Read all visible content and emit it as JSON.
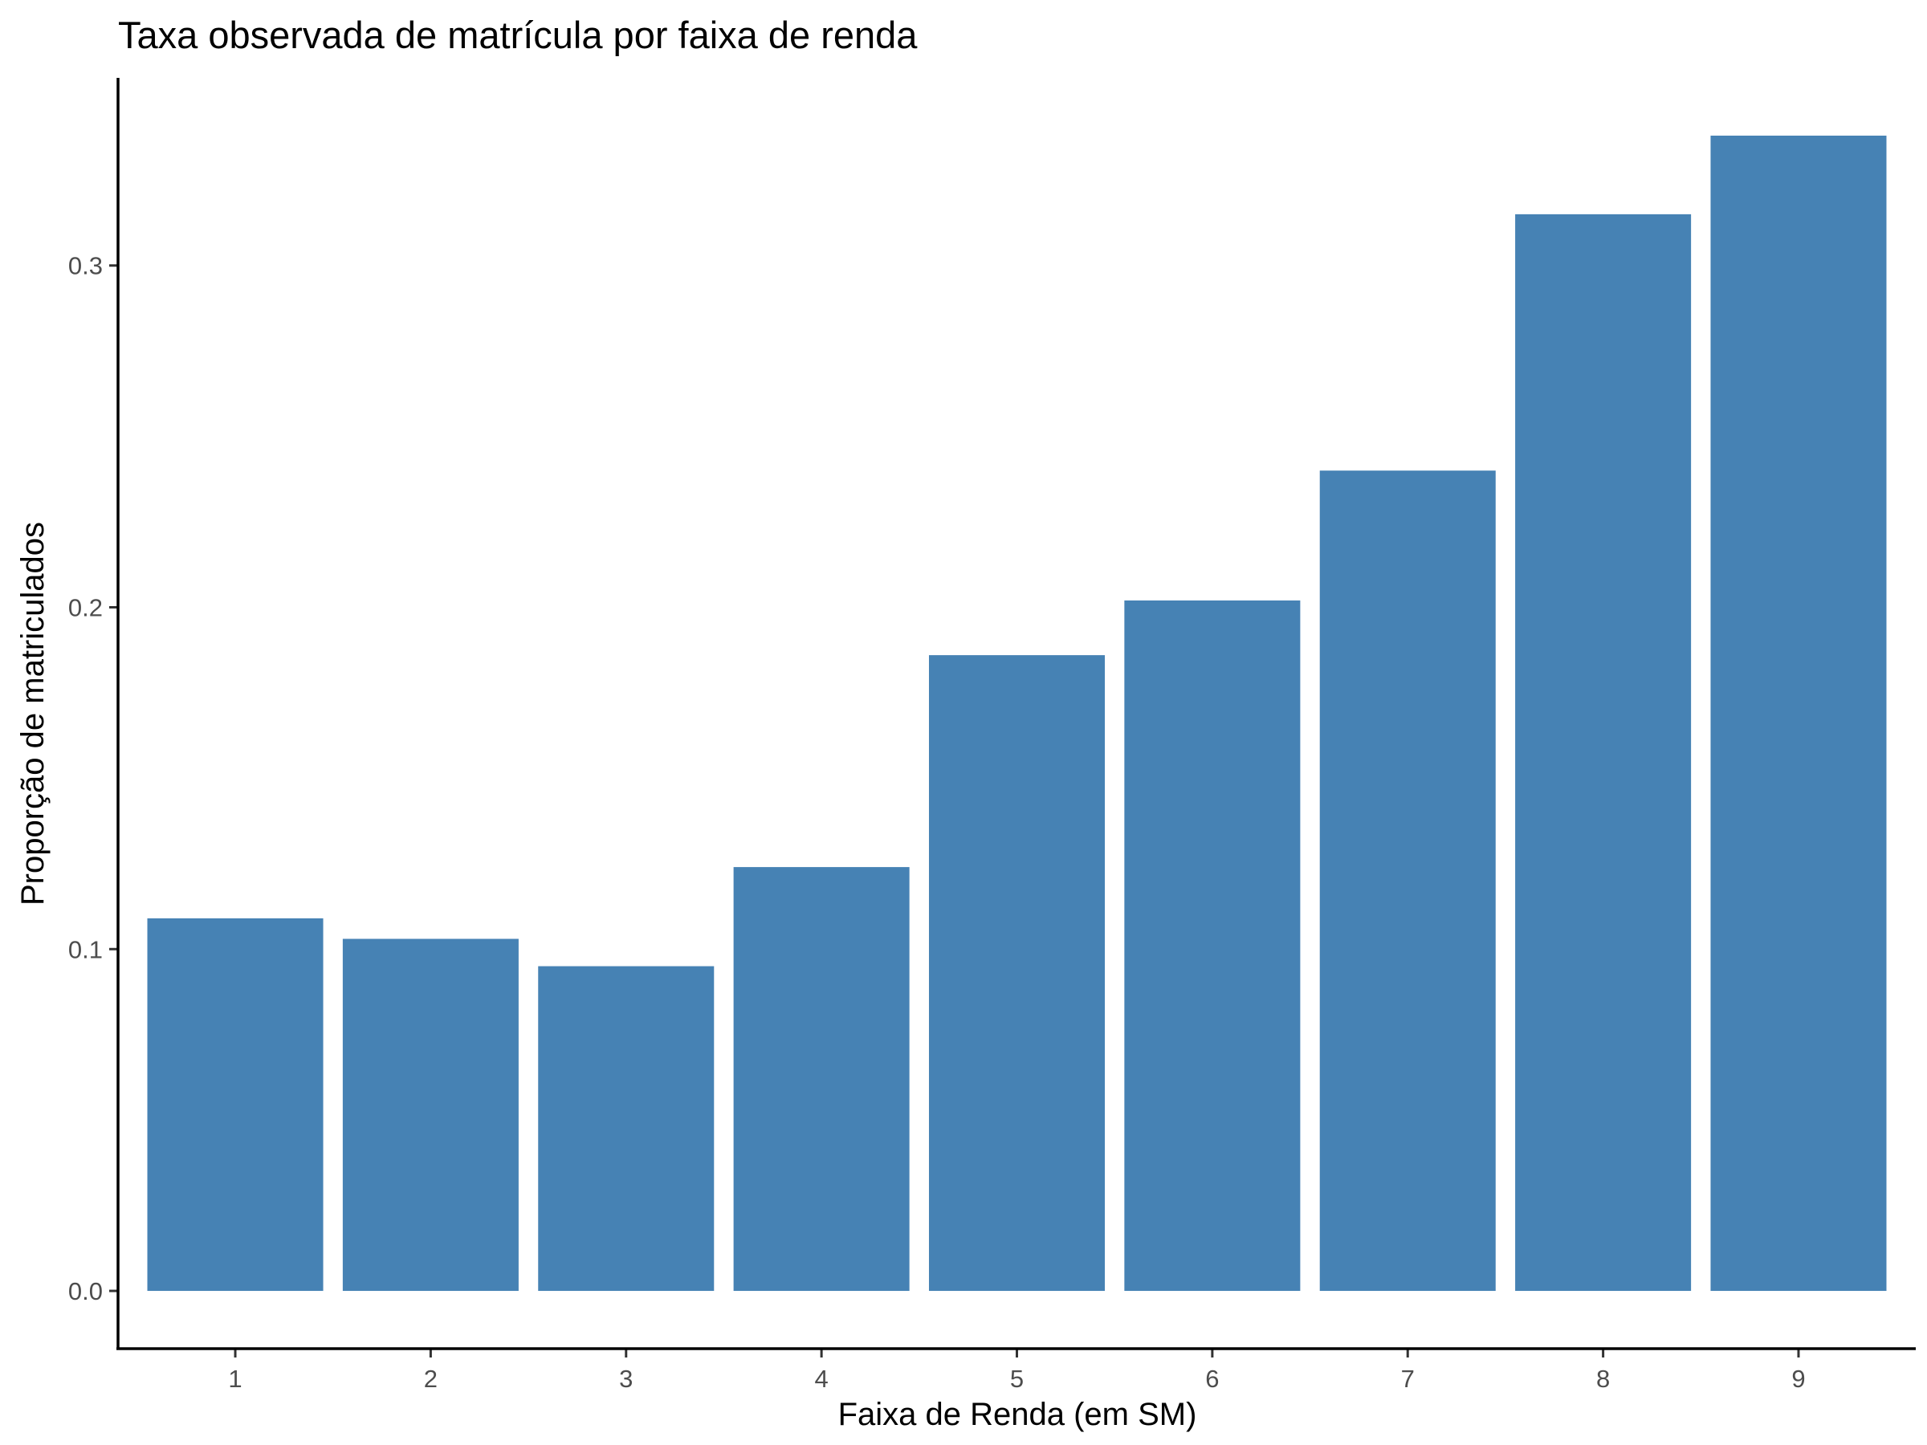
{
  "chart_data": {
    "type": "bar",
    "title": "Taxa observada de matrícula por faixa de renda",
    "xlabel": "Faixa de Renda (em SM)",
    "ylabel": "Proporção de matriculados",
    "categories": [
      "1",
      "2",
      "3",
      "4",
      "5",
      "6",
      "7",
      "8",
      "9"
    ],
    "values": [
      0.109,
      0.103,
      0.095,
      0.124,
      0.186,
      0.202,
      0.24,
      0.315,
      0.338
    ],
    "ylim": [
      -0.0169,
      0.3549
    ],
    "yticks": [
      0.0,
      0.1,
      0.2,
      0.3
    ],
    "ytick_labels": [
      "0.0",
      "0.1",
      "0.2",
      "0.3"
    ],
    "bar_color": "#4682B4",
    "grid": false,
    "legend": "none"
  }
}
